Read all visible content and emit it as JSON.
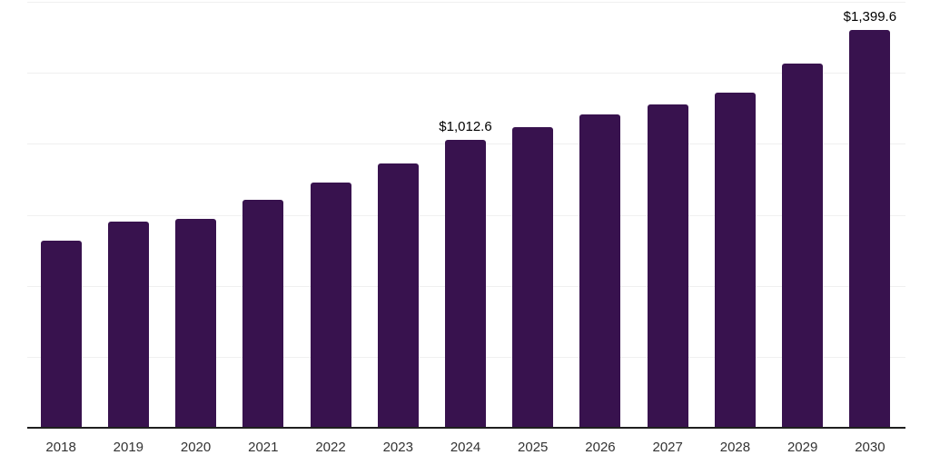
{
  "chart_data": {
    "type": "bar",
    "title": "",
    "xlabel": "",
    "ylabel": "",
    "categories": [
      "2018",
      "2019",
      "2020",
      "2021",
      "2022",
      "2023",
      "2024",
      "2025",
      "2026",
      "2027",
      "2028",
      "2029",
      "2030"
    ],
    "values": [
      660,
      726,
      737,
      803,
      864,
      930,
      1012.6,
      1058,
      1105,
      1137,
      1179,
      1281,
      1399.6
    ],
    "annotations": [
      {
        "category": "2024",
        "index": 6,
        "text": "$1,012.6"
      },
      {
        "category": "2030",
        "index": 12,
        "text": "$1,399.6"
      }
    ],
    "ylim": [
      0,
      1500
    ],
    "gridline_step": 250,
    "grid": "horizontal",
    "legend": "none",
    "y_axis_labels_visible": false,
    "colors": {
      "bar": "#38124E",
      "axis": "#1f1f1f",
      "gridline": "#f0f0f0",
      "tick_label": "#333333",
      "annotation": "#000000",
      "background": "#ffffff"
    }
  }
}
